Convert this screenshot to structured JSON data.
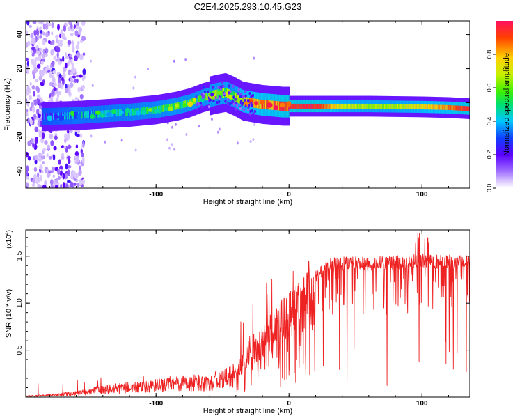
{
  "figure_title": "C2E4.2025.293.10.45.G23",
  "colors": {
    "snr_line": "#ee2222",
    "axis": "#000000",
    "background": "#ffffff"
  },
  "chart_data": [
    {
      "type": "heatmap",
      "title": "C2E4.2025.293.10.45.G23",
      "xlabel": "Height of straight line (km)",
      "ylabel": "Frequency (Hz)",
      "xlim": [
        -198,
        136
      ],
      "ylim": [
        -50,
        48
      ],
      "x_ticks": [
        -100,
        0,
        100
      ],
      "x_tick_labels": [
        "-100",
        "0",
        "100"
      ],
      "y_ticks": [
        -40,
        -20,
        0,
        20,
        40
      ],
      "y_tick_labels": [
        "-40",
        "-20",
        "0",
        "20",
        "40"
      ],
      "colorbar": {
        "label": "Normalized spectral amplitude",
        "range": [
          0,
          1
        ],
        "ticks": [
          0.0,
          0.2,
          0.4,
          0.6,
          0.8
        ],
        "tick_labels": [
          "0.0",
          "0.2",
          "0.4",
          "0.6",
          "0.8"
        ]
      },
      "ridge": {
        "description_values": "dominant frequency (Hz) vs height (km)",
        "x": [
          -182,
          -160,
          -140,
          -120,
          -100,
          -85,
          -75,
          -65,
          -55,
          -48,
          -42,
          -35,
          -28,
          -20,
          -12,
          -5,
          0,
          20,
          40,
          60,
          80,
          100,
          120,
          136
        ],
        "y": [
          -8,
          -7.5,
          -6.5,
          -5.5,
          -4,
          -2,
          0,
          3,
          5,
          6,
          4,
          1,
          0,
          -1,
          -1.5,
          -2,
          -2,
          -2,
          -2,
          -2,
          -2.2,
          -2.4,
          -2.8,
          -3.5
        ],
        "amplitude": [
          0.25,
          0.4,
          0.4,
          0.45,
          0.5,
          0.55,
          0.55,
          0.55,
          0.6,
          0.6,
          0.55,
          0.75,
          0.8,
          0.85,
          0.85,
          0.9,
          0.95,
          0.95,
          0.7,
          0.65,
          0.65,
          0.75,
          0.85,
          0.95
        ]
      }
    },
    {
      "type": "line",
      "xlabel": "Height of straight line (km)",
      "ylabel": "SNR (10 * v/v)",
      "scale_label": "(x10",
      "scale_exponent": "4",
      "scale_close": ")",
      "xlim": [
        -198,
        136
      ],
      "ylim": [
        0,
        1.78
      ],
      "x_ticks": [
        -100,
        0,
        100
      ],
      "x_tick_labels": [
        "-100",
        "0",
        "100"
      ],
      "y_ticks": [
        0.5,
        1.0,
        1.5
      ],
      "y_tick_labels": [
        "0.5",
        "1.0",
        "1.5"
      ],
      "series": [
        {
          "name": "SNR",
          "x": [
            -198,
            -180,
            -160,
            -150,
            -140,
            -130,
            -120,
            -110,
            -100,
            -90,
            -80,
            -70,
            -60,
            -50,
            -45,
            -40,
            -36,
            -33,
            -30,
            -25,
            -20,
            -15,
            -10,
            -5,
            0,
            5,
            10,
            15,
            20,
            25,
            30,
            40,
            50,
            60,
            70,
            80,
            90,
            100,
            110,
            120,
            136
          ],
          "y": [
            0.01,
            0.02,
            0.04,
            0.06,
            0.08,
            0.09,
            0.1,
            0.1,
            0.12,
            0.14,
            0.15,
            0.15,
            0.16,
            0.18,
            0.2,
            0.25,
            0.4,
            0.52,
            0.58,
            0.62,
            0.7,
            0.8,
            0.88,
            0.98,
            1.05,
            1.1,
            1.18,
            1.25,
            1.3,
            1.38,
            1.44,
            1.45,
            1.45,
            1.45,
            1.46,
            1.46,
            1.47,
            1.48,
            1.47,
            1.47,
            1.46
          ]
        }
      ]
    }
  ]
}
